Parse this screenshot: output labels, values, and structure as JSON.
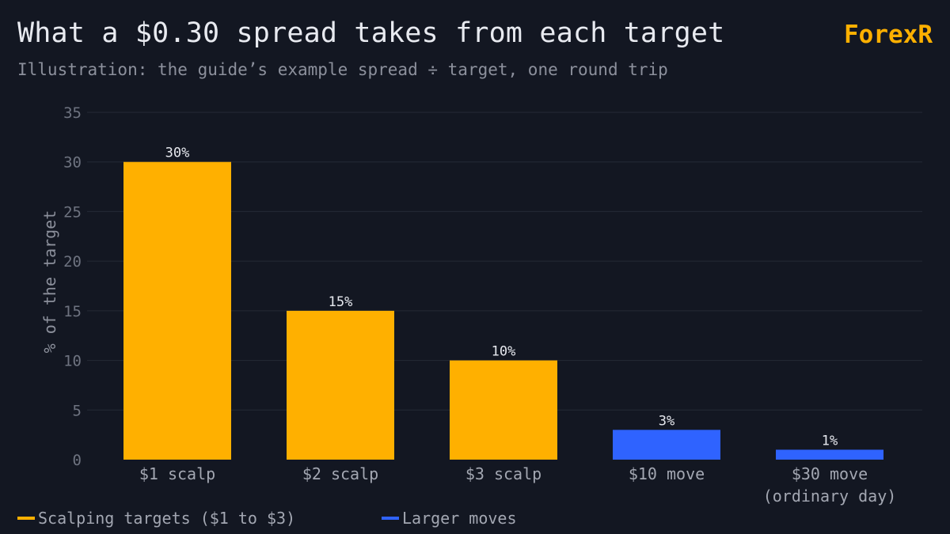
{
  "header": {
    "title": "What a $0.30 spread takes from each target",
    "subtitle": "Illustration: the guide’s example spread ÷ target, one round trip",
    "brand": "ForexR"
  },
  "colors": {
    "background": "#131722",
    "scalping": "#ffb000",
    "larger": "#2f63ff",
    "grid": "#252a36",
    "tick_text": "#6e7380",
    "category_text": "#a3a7b2",
    "label_text": "#e6e8ee"
  },
  "legend": {
    "position": "bottom-left",
    "items": [
      {
        "label": "Scalping targets ($1 to $3)",
        "color": "#ffb000"
      },
      {
        "label": "Larger moves",
        "color": "#2f63ff"
      }
    ]
  },
  "chart_data": {
    "type": "bar",
    "title": "What a $0.30 spread takes from each target",
    "subtitle": "Illustration: the guide’s example spread ÷ target, one round trip",
    "ylabel": "% of the target",
    "xlabel": "",
    "ylim": [
      0,
      35
    ],
    "yticks": [
      0,
      5,
      10,
      15,
      20,
      25,
      30,
      35
    ],
    "grid": true,
    "legend_position": "bottom-left",
    "categories": [
      [
        "$1 scalp"
      ],
      [
        "$2 scalp"
      ],
      [
        "$3 scalp"
      ],
      [
        "$10 move"
      ],
      [
        "$30 move",
        "(ordinary day)"
      ]
    ],
    "values": [
      30,
      15,
      10,
      3,
      1
    ],
    "data_labels": [
      "30%",
      "15%",
      "10%",
      "3%",
      "1%"
    ],
    "groups": [
      "Scalping targets ($1 to $3)",
      "Scalping targets ($1 to $3)",
      "Scalping targets ($1 to $3)",
      "Larger moves",
      "Larger moves"
    ],
    "bar_colors": [
      "#ffb000",
      "#ffb000",
      "#ffb000",
      "#2f63ff",
      "#2f63ff"
    ]
  }
}
